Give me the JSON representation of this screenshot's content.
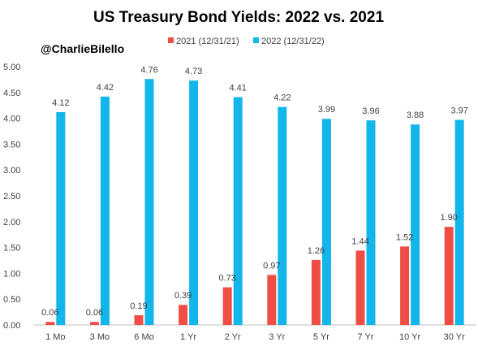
{
  "watermark": "@CharlieBilello",
  "colors": {
    "series_2021": "#f04e45",
    "series_2022": "#12b6ea",
    "axis": "#bfbfbf"
  },
  "chart_data": {
    "type": "bar",
    "title": "US Treasury Bond Yields: 2022 vs. 2021",
    "xlabel": "",
    "ylabel": "",
    "categories": [
      "1 Mo",
      "3 Mo",
      "6 Mo",
      "1 Yr",
      "2 Yr",
      "3 Yr",
      "5 Yr",
      "7 Yr",
      "10 Yr",
      "30 Yr"
    ],
    "series": [
      {
        "name": "2021 (12/31/21)",
        "values": [
          0.06,
          0.06,
          0.19,
          0.39,
          0.73,
          0.97,
          1.26,
          1.44,
          1.52,
          1.9
        ],
        "labels": [
          "0.06",
          "0.06",
          "0.19",
          "0.39",
          "0.73",
          "0.97",
          "1.26",
          "1.44",
          "1.52",
          "1.90"
        ]
      },
      {
        "name": "2022 (12/31/22)",
        "values": [
          4.12,
          4.42,
          4.76,
          4.73,
          4.41,
          4.22,
          3.99,
          3.96,
          3.88,
          3.97
        ],
        "labels": [
          "4.12",
          "4.42",
          "4.76",
          "4.73",
          "4.41",
          "4.22",
          "3.99",
          "3.96",
          "3.88",
          "3.97"
        ]
      }
    ],
    "ylim": [
      0,
      5
    ],
    "yticks": [
      "0.00",
      "0.50",
      "1.00",
      "1.50",
      "2.00",
      "2.50",
      "3.00",
      "3.50",
      "4.00",
      "4.50",
      "5.00"
    ],
    "grid": false,
    "legend": "top"
  }
}
